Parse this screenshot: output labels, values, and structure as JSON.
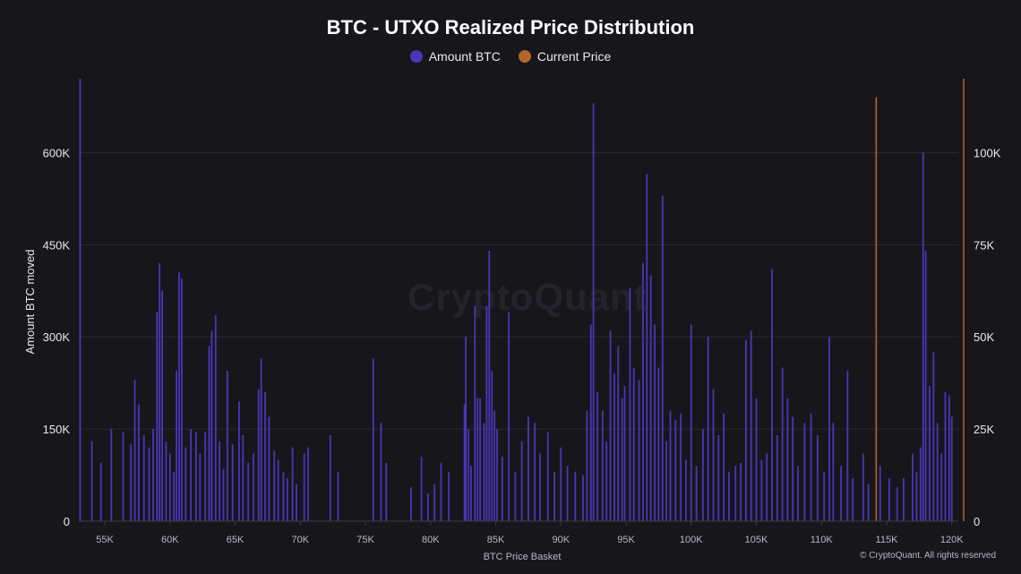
{
  "title": "BTC - UTXO Realized Price Distribution",
  "watermark": "CryptoQuant",
  "footer": "© CryptoQuant. All rights reserved",
  "colors": {
    "bars": "#4a36b8",
    "current_price": "#b5652a",
    "grid": "#2a2a33"
  },
  "chart_data": {
    "type": "bar",
    "title": "BTC - UTXO Realized Price Distribution",
    "xlabel": "BTC Price Basket",
    "ylabel": "Amount BTC moved",
    "legend": [
      {
        "name": "Amount BTC",
        "color": "#4a36b8"
      },
      {
        "name": "Current Price",
        "color": "#b5652a"
      }
    ],
    "legend_position": "top-center",
    "grid": true,
    "xlim": [
      53000,
      120500
    ],
    "ylim_left": [
      0,
      720000
    ],
    "ylim_right": [
      0,
      120000
    ],
    "x_ticks": [
      {
        "value": 55000,
        "label": "55K"
      },
      {
        "value": 60000,
        "label": "60K"
      },
      {
        "value": 65000,
        "label": "65K"
      },
      {
        "value": 70000,
        "label": "70K"
      },
      {
        "value": 75000,
        "label": "75K"
      },
      {
        "value": 80000,
        "label": "80K"
      },
      {
        "value": 85000,
        "label": "85K"
      },
      {
        "value": 90000,
        "label": "90K"
      },
      {
        "value": 95000,
        "label": "95K"
      },
      {
        "value": 100000,
        "label": "100K"
      },
      {
        "value": 105000,
        "label": "105K"
      },
      {
        "value": 110000,
        "label": "110K"
      },
      {
        "value": 115000,
        "label": "115K"
      },
      {
        "value": 120000,
        "label": "120K"
      }
    ],
    "y_ticks_left": [
      {
        "value": 0,
        "label": "0"
      },
      {
        "value": 150000,
        "label": "150K"
      },
      {
        "value": 300000,
        "label": "300K"
      },
      {
        "value": 450000,
        "label": "450K"
      },
      {
        "value": 600000,
        "label": "600K"
      }
    ],
    "y_ticks_right": [
      {
        "value": 0,
        "label": "0"
      },
      {
        "value": 25000,
        "label": "25K"
      },
      {
        "value": 50000,
        "label": "50K"
      },
      {
        "value": 75000,
        "label": "75K"
      },
      {
        "value": 100000,
        "label": "100K"
      }
    ],
    "current_price": {
      "price": 114200,
      "marker_height": 115000
    },
    "series": [
      {
        "name": "Amount BTC",
        "points": [
          [
            53100,
            720000
          ],
          [
            54000,
            130000
          ],
          [
            54700,
            95000
          ],
          [
            55500,
            150000
          ],
          [
            56400,
            145000
          ],
          [
            57000,
            125000
          ],
          [
            57300,
            230000
          ],
          [
            57600,
            190000
          ],
          [
            58000,
            140000
          ],
          [
            58400,
            120000
          ],
          [
            58700,
            150000
          ],
          [
            59000,
            340000
          ],
          [
            59200,
            420000
          ],
          [
            59400,
            375000
          ],
          [
            59700,
            130000
          ],
          [
            60000,
            110000
          ],
          [
            60300,
            80000
          ],
          [
            60500,
            245000
          ],
          [
            60700,
            405000
          ],
          [
            60900,
            395000
          ],
          [
            61200,
            120000
          ],
          [
            61600,
            150000
          ],
          [
            62000,
            145000
          ],
          [
            62300,
            110000
          ],
          [
            62700,
            145000
          ],
          [
            63000,
            285000
          ],
          [
            63200,
            310000
          ],
          [
            63500,
            335000
          ],
          [
            63800,
            130000
          ],
          [
            64100,
            85000
          ],
          [
            64400,
            245000
          ],
          [
            64800,
            125000
          ],
          [
            65300,
            195000
          ],
          [
            65600,
            140000
          ],
          [
            66000,
            95000
          ],
          [
            66400,
            110000
          ],
          [
            66800,
            215000
          ],
          [
            67000,
            265000
          ],
          [
            67300,
            210000
          ],
          [
            67600,
            170000
          ],
          [
            68000,
            115000
          ],
          [
            68300,
            100000
          ],
          [
            68700,
            80000
          ],
          [
            69000,
            70000
          ],
          [
            69400,
            120000
          ],
          [
            69700,
            60000
          ],
          [
            70300,
            110000
          ],
          [
            70600,
            120000
          ],
          [
            72300,
            140000
          ],
          [
            72900,
            80000
          ],
          [
            75600,
            265000
          ],
          [
            76200,
            160000
          ],
          [
            76600,
            95000
          ],
          [
            78500,
            55000
          ],
          [
            79300,
            105000
          ],
          [
            79800,
            45000
          ],
          [
            80300,
            60000
          ],
          [
            80800,
            95000
          ],
          [
            81400,
            80000
          ],
          [
            82600,
            190000
          ],
          [
            82700,
            300000
          ],
          [
            82900,
            150000
          ],
          [
            83100,
            90000
          ],
          [
            83400,
            350000
          ],
          [
            83600,
            200000
          ],
          [
            83800,
            200000
          ],
          [
            84100,
            160000
          ],
          [
            84300,
            350000
          ],
          [
            84500,
            440000
          ],
          [
            84700,
            245000
          ],
          [
            84900,
            180000
          ],
          [
            85100,
            150000
          ],
          [
            85500,
            105000
          ],
          [
            86000,
            340000
          ],
          [
            86500,
            80000
          ],
          [
            87000,
            130000
          ],
          [
            87500,
            170000
          ],
          [
            88000,
            160000
          ],
          [
            88400,
            110000
          ],
          [
            89000,
            145000
          ],
          [
            89500,
            80000
          ],
          [
            90000,
            120000
          ],
          [
            90500,
            90000
          ],
          [
            91100,
            80000
          ],
          [
            91700,
            75000
          ],
          [
            92000,
            180000
          ],
          [
            92300,
            320000
          ],
          [
            92500,
            680000
          ],
          [
            92800,
            210000
          ],
          [
            93200,
            180000
          ],
          [
            93500,
            130000
          ],
          [
            93800,
            310000
          ],
          [
            94100,
            240000
          ],
          [
            94400,
            285000
          ],
          [
            94700,
            200000
          ],
          [
            94900,
            220000
          ],
          [
            95300,
            380000
          ],
          [
            95600,
            250000
          ],
          [
            96000,
            230000
          ],
          [
            96300,
            420000
          ],
          [
            96600,
            565000
          ],
          [
            96900,
            400000
          ],
          [
            97200,
            320000
          ],
          [
            97500,
            250000
          ],
          [
            97800,
            530000
          ],
          [
            98100,
            130000
          ],
          [
            98400,
            180000
          ],
          [
            98800,
            165000
          ],
          [
            99200,
            175000
          ],
          [
            99600,
            100000
          ],
          [
            100000,
            320000
          ],
          [
            100400,
            90000
          ],
          [
            100900,
            150000
          ],
          [
            101300,
            300000
          ],
          [
            101700,
            215000
          ],
          [
            102100,
            140000
          ],
          [
            102500,
            175000
          ],
          [
            102900,
            80000
          ],
          [
            103400,
            90000
          ],
          [
            103800,
            95000
          ],
          [
            104200,
            295000
          ],
          [
            104600,
            310000
          ],
          [
            105000,
            200000
          ],
          [
            105400,
            100000
          ],
          [
            105800,
            110000
          ],
          [
            106200,
            410000
          ],
          [
            106600,
            140000
          ],
          [
            107000,
            250000
          ],
          [
            107400,
            200000
          ],
          [
            107800,
            170000
          ],
          [
            108200,
            90000
          ],
          [
            108700,
            160000
          ],
          [
            109200,
            175000
          ],
          [
            109700,
            140000
          ],
          [
            110200,
            80000
          ],
          [
            110600,
            300000
          ],
          [
            110900,
            160000
          ],
          [
            111500,
            90000
          ],
          [
            112000,
            245000
          ],
          [
            112400,
            70000
          ],
          [
            113200,
            110000
          ],
          [
            113600,
            60000
          ],
          [
            114500,
            90000
          ],
          [
            115200,
            70000
          ],
          [
            115800,
            55000
          ],
          [
            116300,
            70000
          ],
          [
            117000,
            110000
          ],
          [
            117300,
            80000
          ],
          [
            117600,
            120000
          ],
          [
            117800,
            600000
          ],
          [
            118000,
            440000
          ],
          [
            118300,
            220000
          ],
          [
            118600,
            275000
          ],
          [
            118900,
            160000
          ],
          [
            119200,
            110000
          ],
          [
            119500,
            210000
          ],
          [
            119800,
            205000
          ],
          [
            120000,
            170000
          ]
        ]
      }
    ]
  }
}
